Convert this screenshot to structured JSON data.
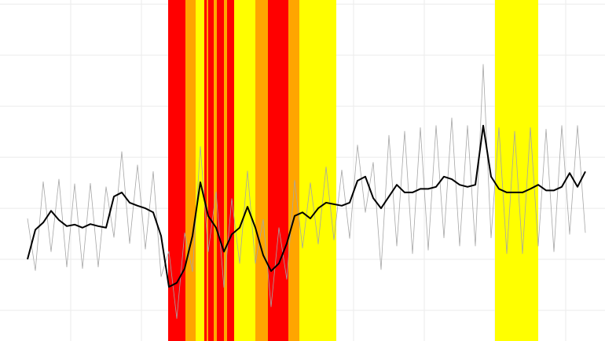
{
  "chart_data": {
    "type": "line",
    "xlim": [
      0,
      77
    ],
    "ylim": [
      -6,
      60.8
    ],
    "xticks": [
      9,
      18,
      27,
      36,
      45,
      54,
      63,
      72
    ],
    "yticks": [
      0,
      10,
      20,
      30,
      40,
      50,
      60
    ],
    "grid": true,
    "bands": [
      {
        "start": 21.4,
        "end": 23.6,
        "color": "#ff0000"
      },
      {
        "start": 23.6,
        "end": 24.9,
        "color": "#ffa500"
      },
      {
        "start": 24.9,
        "end": 26.0,
        "color": "#ffff00"
      },
      {
        "start": 26.0,
        "end": 26.3,
        "color": "#ff0000"
      },
      {
        "start": 26.3,
        "end": 26.5,
        "color": "#ffa500"
      },
      {
        "start": 26.5,
        "end": 27.2,
        "color": "#ff0000"
      },
      {
        "start": 27.2,
        "end": 27.6,
        "color": "#ffa500"
      },
      {
        "start": 27.6,
        "end": 28.5,
        "color": "#ff0000"
      },
      {
        "start": 28.5,
        "end": 28.9,
        "color": "#ffa500"
      },
      {
        "start": 28.9,
        "end": 29.8,
        "color": "#ff0000"
      },
      {
        "start": 29.8,
        "end": 32.5,
        "color": "#ffff00"
      },
      {
        "start": 32.5,
        "end": 34.1,
        "color": "#ffa500"
      },
      {
        "start": 34.1,
        "end": 36.7,
        "color": "#ff0000"
      },
      {
        "start": 36.7,
        "end": 38.1,
        "color": "#ffa500"
      },
      {
        "start": 38.1,
        "end": 42.8,
        "color": "#ffff00"
      },
      {
        "start": 63.0,
        "end": 68.5,
        "color": "#ffff00"
      }
    ],
    "x": [
      3.5,
      4.5,
      5.5,
      6.5,
      7.5,
      8.5,
      9.5,
      10.5,
      11.5,
      12.5,
      13.5,
      14.5,
      15.5,
      16.5,
      17.5,
      18.5,
      19.5,
      20.5,
      21.5,
      22.5,
      23.5,
      24.5,
      25.5,
      26.5,
      27.5,
      28.5,
      29.5,
      30.5,
      31.5,
      32.5,
      33.5,
      34.5,
      35.5,
      36.5,
      37.5,
      38.5,
      39.5,
      40.5,
      41.5,
      42.5,
      43.5,
      44.5,
      45.5,
      46.5,
      47.5,
      48.5,
      49.5,
      50.5,
      51.5,
      52.5,
      53.5,
      54.5,
      55.5,
      56.5,
      57.5,
      58.5,
      59.5,
      60.5,
      61.5,
      62.5,
      63.5,
      64.5,
      65.5,
      66.5,
      67.5,
      68.5,
      69.5,
      70.5,
      71.5,
      72.5,
      73.5,
      74.5
    ],
    "series": [
      {
        "color": "#a6a6a6",
        "width": 0.8,
        "values": [
          18.0,
          7.8,
          25.2,
          11.5,
          25.7,
          8.5,
          24.8,
          8.2,
          24.9,
          8.5,
          24.2,
          14.3,
          31.1,
          13.1,
          28.5,
          12.0,
          27.2,
          6.6,
          11.6,
          -1.6,
          15.2,
          7.6,
          32.1,
          11.5,
          23.2,
          4.5,
          21.9,
          9.2,
          27.3,
          9.2,
          17.8,
          0.7,
          16.2,
          6.1,
          25.5,
          12.2,
          25.0,
          13.0,
          28.1,
          13.8,
          27.5,
          14.1,
          32.4,
          19.2,
          29.0,
          8.0,
          34.3,
          12.6,
          35.1,
          11.1,
          35.8,
          11.8,
          36.2,
          14.2,
          37.7,
          12.6,
          36.2,
          12.6,
          48.2,
          14.2,
          35.8,
          11.1,
          35.1,
          11.1,
          35.8,
          12.6,
          35.5,
          11.5,
          36.2,
          14.9,
          36.2,
          15.2
        ]
      },
      {
        "color": "#000000",
        "width": 2,
        "values": [
          10.0,
          15.8,
          17.2,
          19.5,
          17.7,
          16.5,
          16.8,
          16.2,
          16.9,
          16.5,
          16.2,
          22.3,
          23.1,
          21.1,
          20.5,
          20.0,
          19.2,
          14.6,
          4.6,
          5.4,
          8.2,
          14.6,
          25.1,
          18.5,
          16.2,
          11.5,
          14.9,
          16.2,
          20.3,
          16.2,
          10.8,
          7.7,
          9.2,
          13.1,
          18.5,
          19.2,
          18.0,
          20.0,
          21.1,
          20.8,
          20.5,
          21.1,
          25.4,
          26.2,
          22.0,
          20.0,
          22.3,
          24.6,
          23.1,
          23.1,
          23.8,
          23.8,
          24.2,
          26.2,
          25.7,
          24.6,
          24.2,
          24.6,
          36.2,
          26.2,
          23.8,
          23.1,
          23.1,
          23.1,
          23.8,
          24.6,
          23.5,
          23.5,
          24.2,
          26.9,
          24.2,
          27.2
        ]
      }
    ]
  }
}
